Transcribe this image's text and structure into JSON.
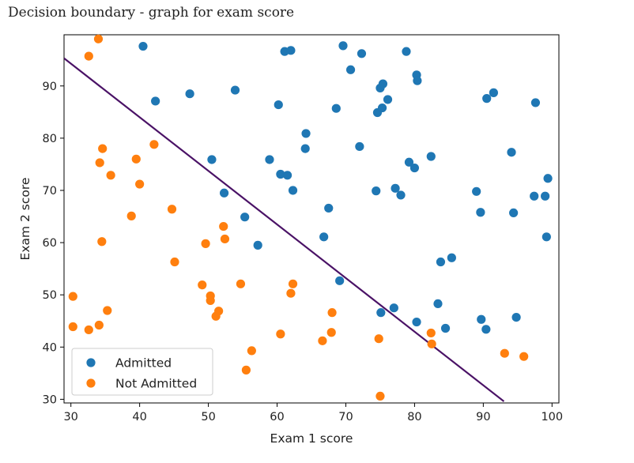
{
  "caption": "Decision boundary - graph for exam score",
  "chart_data": {
    "type": "scatter",
    "xlabel": "Exam 1 score",
    "ylabel": "Exam 2 score",
    "xlim": [
      29,
      101
    ],
    "ylim": [
      29.3,
      99.8
    ],
    "xticks": [
      30,
      40,
      50,
      60,
      70,
      80,
      90,
      100
    ],
    "yticks": [
      30,
      40,
      50,
      60,
      70,
      80,
      90
    ],
    "grid": false,
    "legend_position": "lower-left",
    "series": [
      {
        "name": "Admitted",
        "color": "#1f77b4",
        "points": [
          [
            40.5,
            97.6
          ],
          [
            61.1,
            96.6
          ],
          [
            62.0,
            96.8
          ],
          [
            69.6,
            97.7
          ],
          [
            72.3,
            96.2
          ],
          [
            78.8,
            96.6
          ],
          [
            70.7,
            93.1
          ],
          [
            80.3,
            92.1
          ],
          [
            80.4,
            91.0
          ],
          [
            75.0,
            89.6
          ],
          [
            75.4,
            90.4
          ],
          [
            42.3,
            87.1
          ],
          [
            47.3,
            88.5
          ],
          [
            53.9,
            89.2
          ],
          [
            60.2,
            86.4
          ],
          [
            68.6,
            85.7
          ],
          [
            74.6,
            84.9
          ],
          [
            75.3,
            85.8
          ],
          [
            76.1,
            87.4
          ],
          [
            90.5,
            87.6
          ],
          [
            91.5,
            88.7
          ],
          [
            97.6,
            86.8
          ],
          [
            64.2,
            80.9
          ],
          [
            64.1,
            78.0
          ],
          [
            72.0,
            78.4
          ],
          [
            50.5,
            75.9
          ],
          [
            58.9,
            75.9
          ],
          [
            60.5,
            73.1
          ],
          [
            61.5,
            72.9
          ],
          [
            79.2,
            75.4
          ],
          [
            80.0,
            74.3
          ],
          [
            82.4,
            76.5
          ],
          [
            94.1,
            77.3
          ],
          [
            52.3,
            69.5
          ],
          [
            62.3,
            70.0
          ],
          [
            74.4,
            69.9
          ],
          [
            77.2,
            70.4
          ],
          [
            78.0,
            69.1
          ],
          [
            89.0,
            69.8
          ],
          [
            97.4,
            68.9
          ],
          [
            99.0,
            68.9
          ],
          [
            99.4,
            72.3
          ],
          [
            55.3,
            64.9
          ],
          [
            67.5,
            66.6
          ],
          [
            89.6,
            65.8
          ],
          [
            94.4,
            65.7
          ],
          [
            57.2,
            59.5
          ],
          [
            66.8,
            61.1
          ],
          [
            99.2,
            61.1
          ],
          [
            83.8,
            56.3
          ],
          [
            85.4,
            57.1
          ],
          [
            69.1,
            52.7
          ],
          [
            83.4,
            48.3
          ],
          [
            77.0,
            47.5
          ],
          [
            75.1,
            46.6
          ],
          [
            80.3,
            44.8
          ],
          [
            84.5,
            43.6
          ],
          [
            89.7,
            45.3
          ],
          [
            90.4,
            43.4
          ],
          [
            94.8,
            45.7
          ]
        ]
      },
      {
        "name": "Not Admitted",
        "color": "#ff7f0e",
        "points": [
          [
            34.0,
            99.0
          ],
          [
            32.6,
            95.7
          ],
          [
            42.1,
            78.8
          ],
          [
            34.6,
            78.0
          ],
          [
            34.2,
            75.3
          ],
          [
            39.5,
            76.0
          ],
          [
            35.8,
            72.9
          ],
          [
            40.0,
            71.2
          ],
          [
            44.7,
            66.4
          ],
          [
            38.8,
            65.1
          ],
          [
            52.2,
            63.1
          ],
          [
            52.4,
            60.7
          ],
          [
            49.6,
            59.8
          ],
          [
            34.5,
            60.2
          ],
          [
            45.1,
            56.3
          ],
          [
            49.1,
            51.9
          ],
          [
            50.3,
            49.8
          ],
          [
            50.3,
            48.9
          ],
          [
            54.7,
            52.1
          ],
          [
            62.3,
            52.1
          ],
          [
            62.0,
            50.3
          ],
          [
            30.3,
            49.7
          ],
          [
            35.3,
            47.0
          ],
          [
            51.1,
            45.9
          ],
          [
            51.5,
            46.9
          ],
          [
            68.0,
            46.6
          ],
          [
            30.3,
            43.9
          ],
          [
            32.6,
            43.3
          ],
          [
            34.1,
            44.2
          ],
          [
            60.5,
            42.5
          ],
          [
            67.9,
            42.8
          ],
          [
            66.6,
            41.2
          ],
          [
            74.8,
            41.6
          ],
          [
            82.4,
            42.7
          ],
          [
            82.5,
            40.6
          ],
          [
            56.3,
            39.3
          ],
          [
            93.1,
            38.8
          ],
          [
            95.9,
            38.2
          ],
          [
            55.5,
            35.6
          ],
          [
            75.0,
            30.6
          ]
        ]
      }
    ],
    "boundary": {
      "color": "#4a1266",
      "points": [
        [
          29,
          95.3
        ],
        [
          93,
          29.6
        ]
      ]
    }
  }
}
